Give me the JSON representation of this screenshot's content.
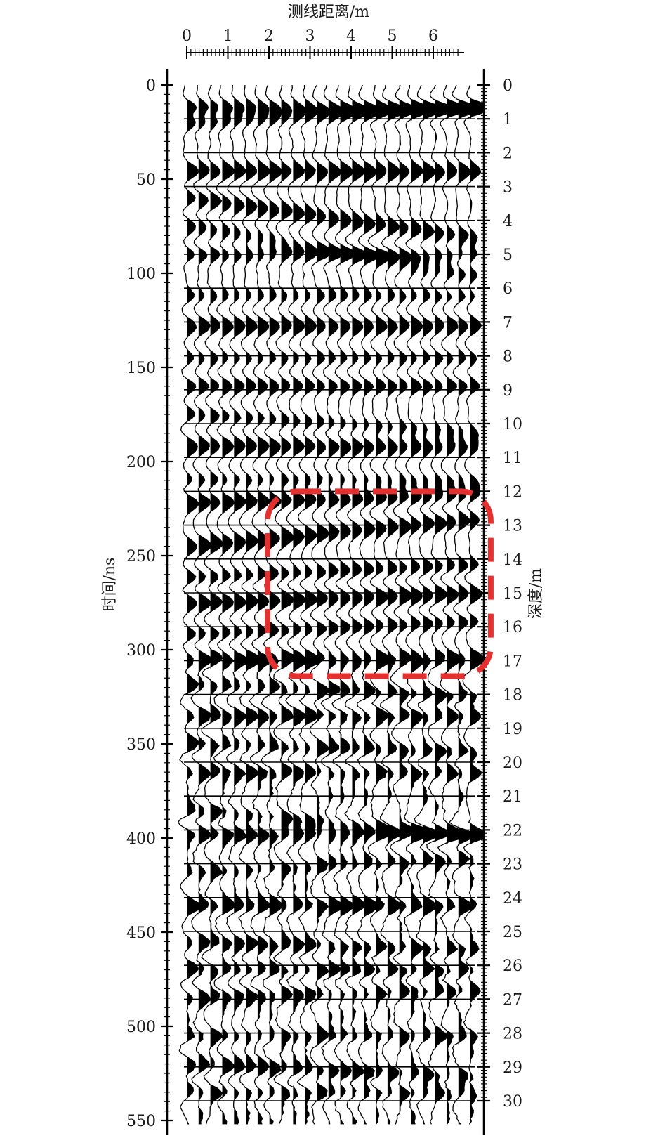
{
  "chart_data": {
    "type": "wiggle-trace",
    "x_axis": {
      "label": "测线距离/m",
      "ticks": [
        "0",
        "1",
        "2",
        "3",
        "4",
        "5",
        "6"
      ],
      "range": [
        0,
        6.9
      ]
    },
    "y_left_axis": {
      "label": "时间/ns",
      "ticks": [
        "0",
        "50",
        "100",
        "150",
        "200",
        "250",
        "300",
        "350",
        "400",
        "450",
        "500",
        "550"
      ],
      "range": [
        0,
        550
      ]
    },
    "y_right_axis": {
      "label": "深度/m",
      "ticks": [
        "0",
        "1",
        "2",
        "3",
        "4",
        "5",
        "6",
        "7",
        "8",
        "9",
        "10",
        "11",
        "12",
        "13",
        "14",
        "15",
        "16",
        "17",
        "18",
        "19",
        "20",
        "21",
        "22",
        "23",
        "24",
        "25",
        "26",
        "27",
        "28",
        "29",
        "30"
      ],
      "range": [
        0,
        30
      ]
    },
    "trace_count": 25,
    "depth_gridlines": true,
    "annotation": {
      "shape": "dashed-rounded-rectangle",
      "color": "#e53030",
      "x_range": [
        2.0,
        7.4
      ],
      "depth_range": [
        12.0,
        17.5
      ]
    },
    "colors": {
      "ink": "#000000",
      "annotation": "#e53030"
    }
  }
}
